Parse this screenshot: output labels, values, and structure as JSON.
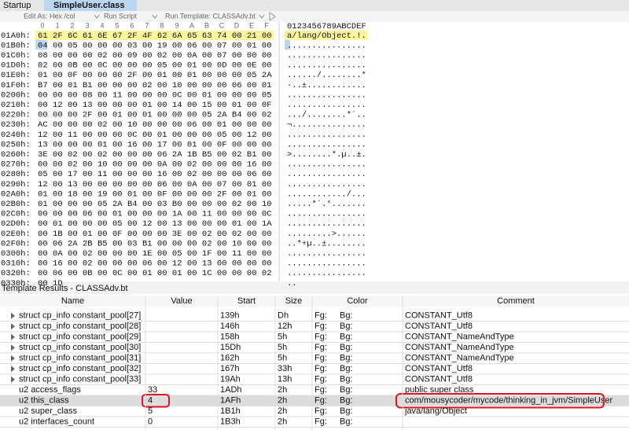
{
  "tabs": [
    "Startup",
    "SimpleUser.class"
  ],
  "toolbar": [
    "Edit As: Hex /col",
    "Run Script",
    "Run Template: CLASSAdv.bt"
  ],
  "hex_view": {
    "columns": [
      "0",
      "1",
      "2",
      "3",
      "4",
      "5",
      "6",
      "7",
      "8",
      "9",
      "A",
      "B",
      "C",
      "D",
      "E",
      "F"
    ],
    "ascii_header": "0123456789ABCDEF",
    "rows": [
      {
        "offset": "01A0h:",
        "bytes": "61 2F 6C 61 6E 67 2F 4F 62 6A 65 63 74 00 21 00",
        "ascii": "a/lang/Object.!."
      },
      {
        "offset": "01B0h:",
        "bytes": "04 00 05 00 00 00 03 00 19 00 06 00 07 00 01 00",
        "ascii": "................"
      },
      {
        "offset": "01C0h:",
        "bytes": "08 00 00 00 02 00 09 00 02 00 0A 00 07 00 00 00",
        "ascii": "................"
      },
      {
        "offset": "01D0h:",
        "bytes": "02 00 0B 00 0C 00 00 00 05 00 01 00 0D 00 0E 00",
        "ascii": "................"
      },
      {
        "offset": "01E0h:",
        "bytes": "01 00 0F 00 00 00 2F 00 01 00 01 00 00 00 05 2A",
        "ascii": "....../........*"
      },
      {
        "offset": "01F0h:",
        "bytes": "B7 00 01 B1 00 00 00 02 00 10 00 00 00 06 00 01",
        "ascii": "·..±............"
      },
      {
        "offset": "0200h:",
        "bytes": "00 00 00 08 00 11 00 00 00 0C 00 01 00 00 00 05",
        "ascii": "................"
      },
      {
        "offset": "0210h:",
        "bytes": "00 12 00 13 00 00 00 01 00 14 00 15 00 01 00 0F",
        "ascii": "................"
      },
      {
        "offset": "0220h:",
        "bytes": "00 00 00 2F 00 01 00 01 00 00 00 05 2A B4 00 02",
        "ascii": ".../........*´.."
      },
      {
        "offset": "0230h:",
        "bytes": "AC 00 00 00 02 00 10 00 00 00 06 00 01 00 00 00",
        "ascii": "¬..............."
      },
      {
        "offset": "0240h:",
        "bytes": "12 00 11 00 00 00 0C 00 01 00 00 00 05 00 12 00",
        "ascii": "................"
      },
      {
        "offset": "0250h:",
        "bytes": "13 00 00 00 01 00 16 00 17 00 01 00 0F 00 00 00",
        "ascii": "................"
      },
      {
        "offset": "0260h:",
        "bytes": "3E 00 02 00 02 00 00 00 06 2A 1B B5 00 02 B1 00",
        "ascii": ">........*.µ..±."
      },
      {
        "offset": "0270h:",
        "bytes": "00 00 02 00 10 00 00 00 0A 00 02 00 00 00 16 00",
        "ascii": "................"
      },
      {
        "offset": "0280h:",
        "bytes": "05 00 17 00 11 00 00 00 16 00 02 00 00 00 06 00",
        "ascii": "................"
      },
      {
        "offset": "0290h:",
        "bytes": "12 00 13 00 00 00 00 00 06 00 0A 00 07 00 01 00",
        "ascii": "................"
      },
      {
        "offset": "02A0h:",
        "bytes": "01 00 18 00 19 00 01 00 0F 00 00 00 2F 00 01 00",
        "ascii": "............/..."
      },
      {
        "offset": "02B0h:",
        "bytes": "01 00 00 00 05 2A B4 00 03 B0 00 00 00 02 00 10",
        "ascii": ".....*´.°......."
      },
      {
        "offset": "02C0h:",
        "bytes": "00 00 00 06 00 01 00 00 00 1A 00 11 00 00 00 0C",
        "ascii": "................"
      },
      {
        "offset": "02D0h:",
        "bytes": "00 01 00 00 00 05 00 12 00 13 00 00 00 01 00 1A",
        "ascii": "................"
      },
      {
        "offset": "02E0h:",
        "bytes": "00 1B 00 01 00 0F 00 00 00 3E 00 02 00 02 00 00",
        "ascii": ".........>......"
      },
      {
        "offset": "02F0h:",
        "bytes": "00 06 2A 2B B5 00 03 B1 00 00 00 02 00 10 00 00",
        "ascii": "..*+µ..±........"
      },
      {
        "offset": "0300h:",
        "bytes": "00 0A 00 02 00 00 00 1E 00 05 00 1F 00 11 00 00",
        "ascii": "................"
      },
      {
        "offset": "0310h:",
        "bytes": "00 16 00 02 00 00 00 06 00 12 00 13 00 00 00 00",
        "ascii": "................"
      },
      {
        "offset": "0320h:",
        "bytes": "00 06 00 0B 00 0C 00 01 00 01 00 1C 00 00 00 02",
        "ascii": "................"
      },
      {
        "offset": "0330h:",
        "bytes": "00 1D",
        "ascii": ".."
      }
    ]
  },
  "template": {
    "title": "Template Results - CLASSAdv.bt",
    "headers": [
      "Name",
      "Value",
      "Start",
      "Size",
      "Color",
      "Comment"
    ],
    "rows": [
      {
        "name": "struct cp_info constant_pool[27]",
        "value": null,
        "start": "139h",
        "size": "Dh",
        "fg": "Fg:",
        "bg": "Bg:",
        "comment": "CONSTANT_Utf8"
      },
      {
        "name": "struct cp_info constant_pool[28]",
        "value": null,
        "start": "146h",
        "size": "12h",
        "fg": "Fg:",
        "bg": "Bg:",
        "comment": "CONSTANT_Utf8"
      },
      {
        "name": "struct cp_info constant_pool[29]",
        "value": null,
        "start": "158h",
        "size": "5h",
        "fg": "Fg:",
        "bg": "Bg:",
        "comment": "CONSTANT_NameAndType"
      },
      {
        "name": "struct cp_info constant_pool[30]",
        "value": null,
        "start": "15Dh",
        "size": "5h",
        "fg": "Fg:",
        "bg": "Bg:",
        "comment": "CONSTANT_NameAndType"
      },
      {
        "name": "struct cp_info constant_pool[31]",
        "value": null,
        "start": "162h",
        "size": "5h",
        "fg": "Fg:",
        "bg": "Bg:",
        "comment": "CONSTANT_NameAndType"
      },
      {
        "name": "struct cp_info constant_pool[32]",
        "value": null,
        "start": "167h",
        "size": "33h",
        "fg": "Fg:",
        "bg": "Bg:",
        "comment": "CONSTANT_Utf8"
      },
      {
        "name": "struct cp_info constant_pool[33]",
        "value": null,
        "start": "19Ah",
        "size": "13h",
        "fg": "Fg:",
        "bg": "Bg:",
        "comment": "CONSTANT_Utf8"
      },
      {
        "name": "u2 access_flags",
        "value": 33,
        "start": "1ADh",
        "size": "2h",
        "fg": "Fg:",
        "bg": "Bg:",
        "comment": "public super class"
      },
      {
        "name": "u2 this_class",
        "value": 4,
        "start": "1AFh",
        "size": "2h",
        "fg": "Fg:",
        "bg": "Bg:",
        "comment": "com/mousycoder/mycode/thinking_in_jvm/SimpleUser"
      },
      {
        "name": "u2 super_class",
        "value": 5,
        "start": "1B1h",
        "size": "2h",
        "fg": "Fg:",
        "bg": "Bg:",
        "comment": "java/lang/Object"
      },
      {
        "name": "u2 interfaces_count",
        "value": 0,
        "start": "1B3h",
        "size": "2h",
        "fg": "Fg:",
        "bg": "Bg:",
        "comment": null
      }
    ]
  }
}
